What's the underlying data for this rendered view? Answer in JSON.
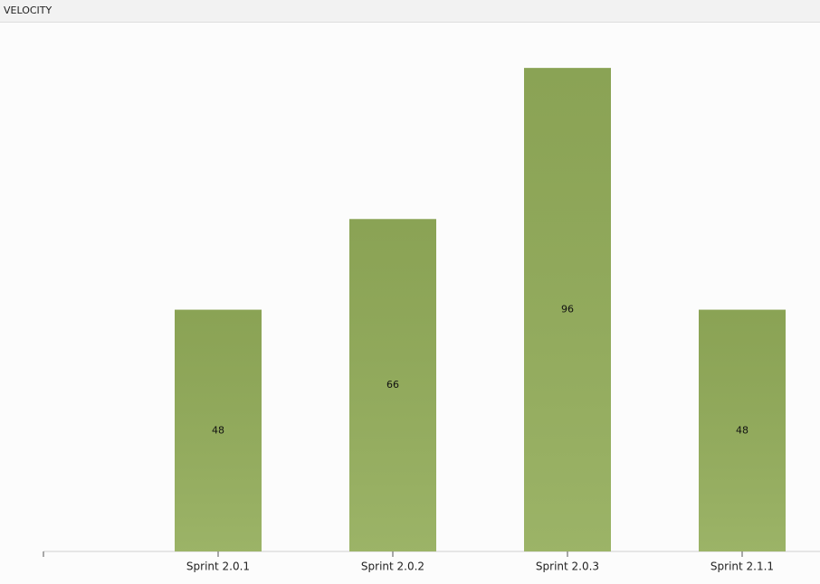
{
  "chart_data": {
    "type": "bar",
    "title": "VELOCITY",
    "categories": [
      null,
      "Sprint 2.0.1",
      "Sprint 2.0.2",
      "Sprint 2.0.3",
      "Sprint 2.1.1"
    ],
    "values": [
      null,
      48,
      66,
      96,
      48
    ],
    "color": "#93ad5a",
    "ylim": [
      0,
      105
    ]
  }
}
